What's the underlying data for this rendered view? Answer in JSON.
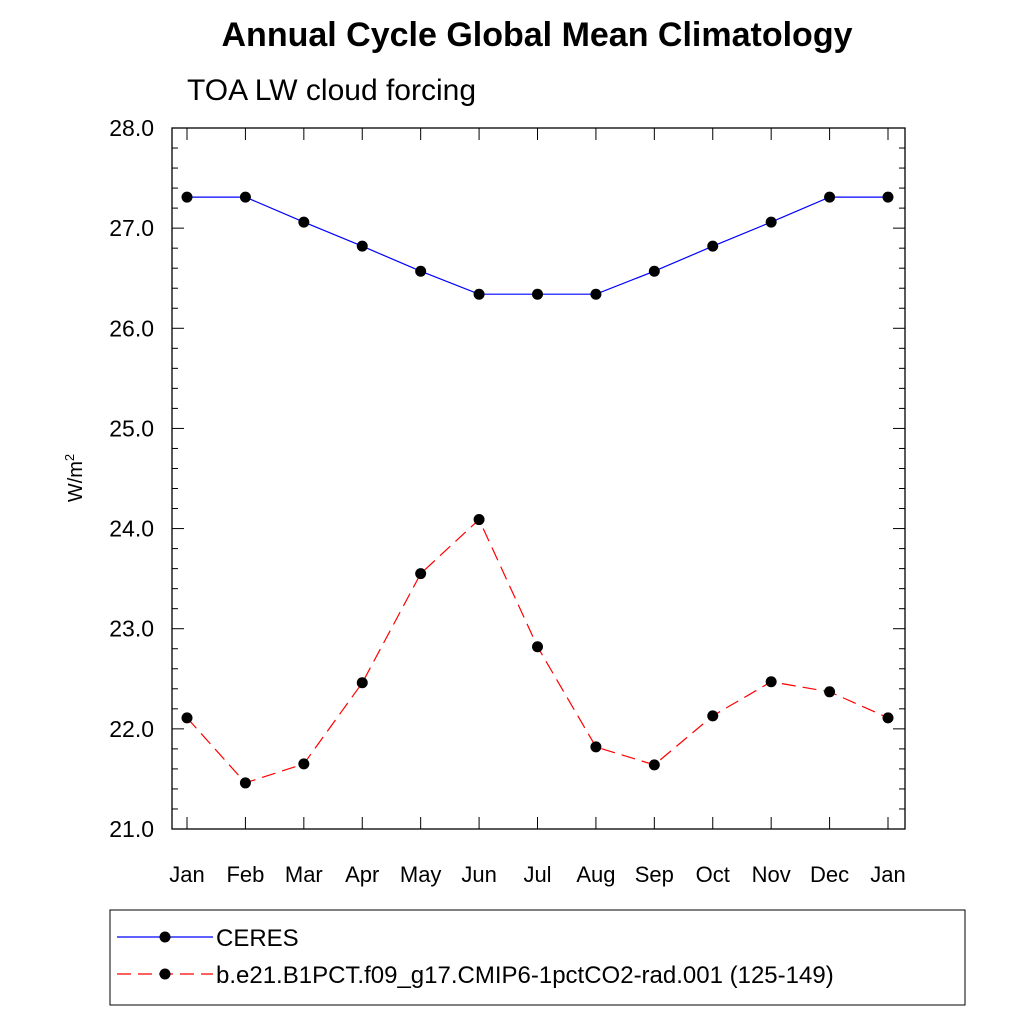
{
  "chart_data": {
    "type": "line",
    "title": "Annual Cycle Global Mean Climatology",
    "subtitle": "TOA LW cloud forcing",
    "xlabel": "",
    "ylabel": "W/m",
    "ylabel_superscript": "2",
    "categories": [
      "Jan",
      "Feb",
      "Mar",
      "Apr",
      "May",
      "Jun",
      "Jul",
      "Aug",
      "Sep",
      "Oct",
      "Nov",
      "Dec",
      "Jan"
    ],
    "ylim": [
      21.0,
      28.0
    ],
    "yticks": [
      "21.0",
      "22.0",
      "23.0",
      "24.0",
      "25.0",
      "26.0",
      "27.0",
      "28.0"
    ],
    "legend_position": "bottom",
    "series": [
      {
        "name": "CERES",
        "color": "#0000ff",
        "line_style": "solid",
        "marker": "filled-circle",
        "values": [
          27.31,
          27.31,
          27.06,
          26.82,
          26.57,
          26.34,
          26.34,
          26.34,
          26.57,
          26.82,
          27.06,
          27.31,
          27.31
        ]
      },
      {
        "name": "b.e21.B1PCT.f09_g17.CMIP6-1pctCO2-rad.001 (125-149)",
        "color": "#ff0000",
        "line_style": "dashed",
        "marker": "filled-circle",
        "values": [
          22.11,
          21.46,
          21.65,
          22.46,
          23.55,
          24.09,
          22.82,
          21.82,
          21.64,
          22.13,
          22.47,
          22.37,
          22.11
        ]
      }
    ]
  }
}
